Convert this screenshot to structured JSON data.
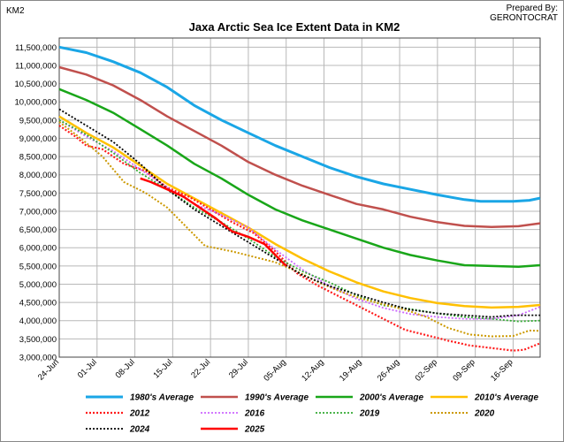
{
  "chart_data": {
    "type": "line",
    "title": "Jaxa Arctic Sea Ice Extent Data in KM2",
    "ylabel": "KM2",
    "credit_line1": "Prepared By:",
    "credit_line2": "GERONTOCRAT",
    "ylim": [
      3000000,
      11750000
    ],
    "y_ticks": [
      "3,000,000",
      "3,500,000",
      "4,000,000",
      "4,500,000",
      "5,000,000",
      "5,500,000",
      "6,000,000",
      "6,500,000",
      "7,000,000",
      "7,500,000",
      "8,000,000",
      "8,500,000",
      "9,000,000",
      "9,500,000",
      "10,000,000",
      "10,500,000",
      "11,000,000",
      "11,500,000"
    ],
    "y_tick_values": [
      3000000,
      3500000,
      4000000,
      4500000,
      5000000,
      5500000,
      6000000,
      6500000,
      7000000,
      7500000,
      8000000,
      8500000,
      9000000,
      9500000,
      10000000,
      10500000,
      11000000,
      11500000
    ],
    "x_ticks": [
      "24-Jun",
      "01-Jul",
      "08-Jul",
      "15-Jul",
      "22-Jul",
      "29-Jul",
      "05-Aug",
      "12-Aug",
      "19-Aug",
      "26-Aug",
      "02-Sep",
      "09-Sep",
      "16-Sep"
    ],
    "x_days": [
      0,
      7,
      14,
      21,
      28,
      35,
      42,
      49,
      56,
      63,
      70,
      77,
      84
    ],
    "xlim": [
      0,
      89
    ],
    "grid": true,
    "legend_position": "bottom",
    "series": [
      {
        "name": "1980's Average",
        "color": "#1aa6e6",
        "style": "solid",
        "width": 3,
        "points": [
          [
            0,
            11500000
          ],
          [
            5,
            11350000
          ],
          [
            10,
            11100000
          ],
          [
            15,
            10800000
          ],
          [
            20,
            10400000
          ],
          [
            25,
            9900000
          ],
          [
            30,
            9500000
          ],
          [
            35,
            9150000
          ],
          [
            40,
            8800000
          ],
          [
            45,
            8500000
          ],
          [
            50,
            8200000
          ],
          [
            55,
            7950000
          ],
          [
            60,
            7750000
          ],
          [
            65,
            7600000
          ],
          [
            70,
            7450000
          ],
          [
            75,
            7320000
          ],
          [
            78,
            7270000
          ],
          [
            84,
            7270000
          ],
          [
            87,
            7300000
          ],
          [
            89,
            7360000
          ]
        ]
      },
      {
        "name": "1990's Average",
        "color": "#c0504d",
        "style": "solid",
        "width": 2.5,
        "points": [
          [
            0,
            10950000
          ],
          [
            5,
            10750000
          ],
          [
            10,
            10450000
          ],
          [
            15,
            10050000
          ],
          [
            20,
            9600000
          ],
          [
            25,
            9200000
          ],
          [
            30,
            8800000
          ],
          [
            35,
            8350000
          ],
          [
            40,
            8000000
          ],
          [
            45,
            7700000
          ],
          [
            50,
            7450000
          ],
          [
            55,
            7200000
          ],
          [
            60,
            7050000
          ],
          [
            65,
            6850000
          ],
          [
            70,
            6700000
          ],
          [
            75,
            6600000
          ],
          [
            80,
            6570000
          ],
          [
            85,
            6590000
          ],
          [
            89,
            6670000
          ]
        ]
      },
      {
        "name": "2000's Average",
        "color": "#19a619",
        "style": "solid",
        "width": 2.5,
        "points": [
          [
            0,
            10350000
          ],
          [
            5,
            10050000
          ],
          [
            10,
            9700000
          ],
          [
            15,
            9250000
          ],
          [
            20,
            8800000
          ],
          [
            25,
            8300000
          ],
          [
            30,
            7900000
          ],
          [
            35,
            7450000
          ],
          [
            40,
            7050000
          ],
          [
            45,
            6750000
          ],
          [
            50,
            6500000
          ],
          [
            55,
            6250000
          ],
          [
            60,
            6000000
          ],
          [
            65,
            5800000
          ],
          [
            70,
            5650000
          ],
          [
            75,
            5520000
          ],
          [
            80,
            5500000
          ],
          [
            85,
            5480000
          ],
          [
            89,
            5520000
          ]
        ]
      },
      {
        "name": "2010's Average",
        "color": "#ffc000",
        "style": "solid",
        "width": 2.5,
        "points": [
          [
            0,
            9600000
          ],
          [
            5,
            9150000
          ],
          [
            10,
            8750000
          ],
          [
            15,
            8250000
          ],
          [
            20,
            7750000
          ],
          [
            25,
            7350000
          ],
          [
            30,
            6950000
          ],
          [
            35,
            6550000
          ],
          [
            40,
            6100000
          ],
          [
            45,
            5700000
          ],
          [
            50,
            5350000
          ],
          [
            55,
            5050000
          ],
          [
            60,
            4800000
          ],
          [
            65,
            4620000
          ],
          [
            70,
            4480000
          ],
          [
            75,
            4400000
          ],
          [
            80,
            4360000
          ],
          [
            85,
            4380000
          ],
          [
            89,
            4430000
          ]
        ]
      },
      {
        "name": "2012",
        "color": "#ff1a1a",
        "style": "dotted",
        "width": 2.2,
        "points": [
          [
            0,
            9350000
          ],
          [
            3,
            9050000
          ],
          [
            5,
            8800000
          ],
          [
            8,
            8700000
          ],
          [
            12,
            8300000
          ],
          [
            16,
            8100000
          ],
          [
            20,
            7650000
          ],
          [
            24,
            7400000
          ],
          [
            28,
            7050000
          ],
          [
            32,
            6700000
          ],
          [
            36,
            6400000
          ],
          [
            40,
            5900000
          ],
          [
            44,
            5300000
          ],
          [
            48,
            4950000
          ],
          [
            52,
            4650000
          ],
          [
            56,
            4350000
          ],
          [
            60,
            4050000
          ],
          [
            64,
            3750000
          ],
          [
            68,
            3600000
          ],
          [
            72,
            3450000
          ],
          [
            76,
            3320000
          ],
          [
            80,
            3250000
          ],
          [
            84,
            3180000
          ],
          [
            86,
            3200000
          ],
          [
            89,
            3380000
          ]
        ]
      },
      {
        "name": "2016",
        "color": "#cc66ff",
        "style": "dotted",
        "width": 1.8,
        "points": [
          [
            0,
            9500000
          ],
          [
            5,
            9050000
          ],
          [
            10,
            8650000
          ],
          [
            15,
            8150000
          ],
          [
            20,
            7650000
          ],
          [
            25,
            7200000
          ],
          [
            30,
            6900000
          ],
          [
            35,
            6550000
          ],
          [
            40,
            5950000
          ],
          [
            45,
            5400000
          ],
          [
            50,
            4950000
          ],
          [
            55,
            4600000
          ],
          [
            60,
            4350000
          ],
          [
            65,
            4180000
          ],
          [
            70,
            4100000
          ],
          [
            75,
            4050000
          ],
          [
            80,
            4050000
          ],
          [
            85,
            4150000
          ],
          [
            89,
            4380000
          ]
        ]
      },
      {
        "name": "2019",
        "color": "#33aa33",
        "style": "dotted",
        "width": 1.8,
        "points": [
          [
            0,
            9500000
          ],
          [
            5,
            9100000
          ],
          [
            10,
            8600000
          ],
          [
            15,
            8050000
          ],
          [
            20,
            7600000
          ],
          [
            25,
            7100000
          ],
          [
            30,
            6700000
          ],
          [
            35,
            6250000
          ],
          [
            40,
            5750000
          ],
          [
            45,
            5350000
          ],
          [
            50,
            5050000
          ],
          [
            55,
            4700000
          ],
          [
            60,
            4420000
          ],
          [
            65,
            4320000
          ],
          [
            70,
            4200000
          ],
          [
            75,
            4100000
          ],
          [
            80,
            4050000
          ],
          [
            85,
            3980000
          ],
          [
            89,
            4000000
          ]
        ]
      },
      {
        "name": "2020",
        "color": "#cc9900",
        "style": "dotted",
        "width": 2,
        "points": [
          [
            0,
            9450000
          ],
          [
            4,
            9000000
          ],
          [
            8,
            8500000
          ],
          [
            12,
            7800000
          ],
          [
            16,
            7500000
          ],
          [
            20,
            7100000
          ],
          [
            24,
            6500000
          ],
          [
            27,
            6050000
          ],
          [
            32,
            5900000
          ],
          [
            36,
            5750000
          ],
          [
            40,
            5600000
          ],
          [
            44,
            5350000
          ],
          [
            48,
            5050000
          ],
          [
            52,
            4800000
          ],
          [
            56,
            4600000
          ],
          [
            60,
            4450000
          ],
          [
            64,
            4300000
          ],
          [
            68,
            4100000
          ],
          [
            72,
            3800000
          ],
          [
            76,
            3620000
          ],
          [
            80,
            3570000
          ],
          [
            84,
            3580000
          ],
          [
            87,
            3730000
          ],
          [
            89,
            3720000
          ]
        ]
      },
      {
        "name": "2024",
        "color": "#000000",
        "style": "dotted",
        "width": 1.8,
        "points": [
          [
            0,
            9800000
          ],
          [
            5,
            9350000
          ],
          [
            10,
            8900000
          ],
          [
            15,
            8300000
          ],
          [
            20,
            7600000
          ],
          [
            25,
            7050000
          ],
          [
            30,
            6600000
          ],
          [
            35,
            6150000
          ],
          [
            40,
            5700000
          ],
          [
            45,
            5250000
          ],
          [
            50,
            4950000
          ],
          [
            55,
            4720000
          ],
          [
            60,
            4500000
          ],
          [
            65,
            4300000
          ],
          [
            70,
            4200000
          ],
          [
            75,
            4150000
          ],
          [
            80,
            4100000
          ],
          [
            84,
            4150000
          ],
          [
            89,
            4150000
          ]
        ]
      },
      {
        "name": "2025",
        "color": "#ff0000",
        "style": "solid",
        "width": 2.5,
        "points": [
          [
            15,
            7900000
          ],
          [
            17,
            7800000
          ],
          [
            20,
            7600000
          ],
          [
            23,
            7400000
          ],
          [
            26,
            7100000
          ],
          [
            29,
            6800000
          ],
          [
            32,
            6450000
          ],
          [
            35,
            6300000
          ],
          [
            38,
            6100000
          ],
          [
            40,
            5800000
          ],
          [
            42,
            5500000
          ]
        ]
      }
    ]
  }
}
